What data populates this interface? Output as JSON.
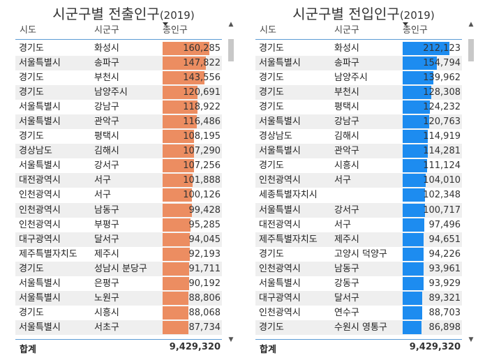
{
  "colors": {
    "left_bar": "#ec8d61",
    "right_bar": "#1d8cf0",
    "row_alt": "#efefef",
    "accent_line": "#5b9bd5"
  },
  "left": {
    "title": "시군구별 전출인구",
    "title_year": "(2019)",
    "headers": {
      "c1": "시도",
      "c2": "시군구",
      "c3": "총인구"
    },
    "rows": [
      {
        "sido": "경기도",
        "sigungu": "화성시",
        "value": "160,285",
        "num": 160285
      },
      {
        "sido": "서울특별시",
        "sigungu": "송파구",
        "value": "147,822",
        "num": 147822
      },
      {
        "sido": "경기도",
        "sigungu": "부천시",
        "value": "143,556",
        "num": 143556
      },
      {
        "sido": "경기도",
        "sigungu": "남양주시",
        "value": "120,691",
        "num": 120691
      },
      {
        "sido": "서울특별시",
        "sigungu": "강남구",
        "value": "118,922",
        "num": 118922
      },
      {
        "sido": "서울특별시",
        "sigungu": "관악구",
        "value": "116,486",
        "num": 116486
      },
      {
        "sido": "경기도",
        "sigungu": "평택시",
        "value": "108,195",
        "num": 108195
      },
      {
        "sido": "경상남도",
        "sigungu": "김해시",
        "value": "107,290",
        "num": 107290
      },
      {
        "sido": "서울특별시",
        "sigungu": "강서구",
        "value": "107,256",
        "num": 107256
      },
      {
        "sido": "대전광역시",
        "sigungu": "서구",
        "value": "101,888",
        "num": 101888
      },
      {
        "sido": "인천광역시",
        "sigungu": "서구",
        "value": "100,126",
        "num": 100126
      },
      {
        "sido": "인천광역시",
        "sigungu": "남동구",
        "value": "99,428",
        "num": 99428
      },
      {
        "sido": "인천광역시",
        "sigungu": "부평구",
        "value": "95,285",
        "num": 95285
      },
      {
        "sido": "대구광역시",
        "sigungu": "달서구",
        "value": "94,045",
        "num": 94045
      },
      {
        "sido": "제주특별자치도",
        "sigungu": "제주시",
        "value": "92,193",
        "num": 92193
      },
      {
        "sido": "경기도",
        "sigungu": "성남시 분당구",
        "value": "91,711",
        "num": 91711
      },
      {
        "sido": "서울특별시",
        "sigungu": "은평구",
        "value": "90,192",
        "num": 90192
      },
      {
        "sido": "서울특별시",
        "sigungu": "노원구",
        "value": "88,806",
        "num": 88806
      },
      {
        "sido": "경기도",
        "sigungu": "시흥시",
        "value": "88,068",
        "num": 88068
      },
      {
        "sido": "서울특별시",
        "sigungu": "서초구",
        "value": "87,734",
        "num": 87734
      }
    ],
    "total_label": "합계",
    "total_value": "9,429,320"
  },
  "right": {
    "title": "시군구별 전입인구",
    "title_year": "(2019)",
    "headers": {
      "c1": "시도",
      "c2": "시군구",
      "c3": "총인구"
    },
    "rows": [
      {
        "sido": "경기도",
        "sigungu": "화성시",
        "value": "212,123",
        "num": 212123
      },
      {
        "sido": "서울특별시",
        "sigungu": "송파구",
        "value": "154,794",
        "num": 154794
      },
      {
        "sido": "경기도",
        "sigungu": "남양주시",
        "value": "139,962",
        "num": 139962
      },
      {
        "sido": "경기도",
        "sigungu": "부천시",
        "value": "128,308",
        "num": 128308
      },
      {
        "sido": "경기도",
        "sigungu": "평택시",
        "value": "124,232",
        "num": 124232
      },
      {
        "sido": "서울특별시",
        "sigungu": "강남구",
        "value": "120,763",
        "num": 120763
      },
      {
        "sido": "경상남도",
        "sigungu": "김해시",
        "value": "114,919",
        "num": 114919
      },
      {
        "sido": "서울특별시",
        "sigungu": "관악구",
        "value": "114,281",
        "num": 114281
      },
      {
        "sido": "경기도",
        "sigungu": "시흥시",
        "value": "111,124",
        "num": 111124
      },
      {
        "sido": "인천광역시",
        "sigungu": "서구",
        "value": "104,010",
        "num": 104010
      },
      {
        "sido": "세종특별자치시",
        "sigungu": "",
        "value": "102,348",
        "num": 102348
      },
      {
        "sido": "서울특별시",
        "sigungu": "강서구",
        "value": "100,717",
        "num": 100717
      },
      {
        "sido": "대전광역시",
        "sigungu": "서구",
        "value": "97,496",
        "num": 97496
      },
      {
        "sido": "제주특별자치도",
        "sigungu": "제주시",
        "value": "94,651",
        "num": 94651
      },
      {
        "sido": "경기도",
        "sigungu": "고양시 덕양구",
        "value": "94,226",
        "num": 94226
      },
      {
        "sido": "인천광역시",
        "sigungu": "남동구",
        "value": "93,961",
        "num": 93961
      },
      {
        "sido": "서울특별시",
        "sigungu": "강동구",
        "value": "93,929",
        "num": 93929
      },
      {
        "sido": "대구광역시",
        "sigungu": "달서구",
        "value": "89,321",
        "num": 89321
      },
      {
        "sido": "인천광역시",
        "sigungu": "연수구",
        "value": "88,703",
        "num": 88703
      },
      {
        "sido": "경기도",
        "sigungu": "수원시 영통구",
        "value": "86,898",
        "num": 86898
      }
    ],
    "total_label": "합계",
    "total_value": "9,429,320"
  }
}
